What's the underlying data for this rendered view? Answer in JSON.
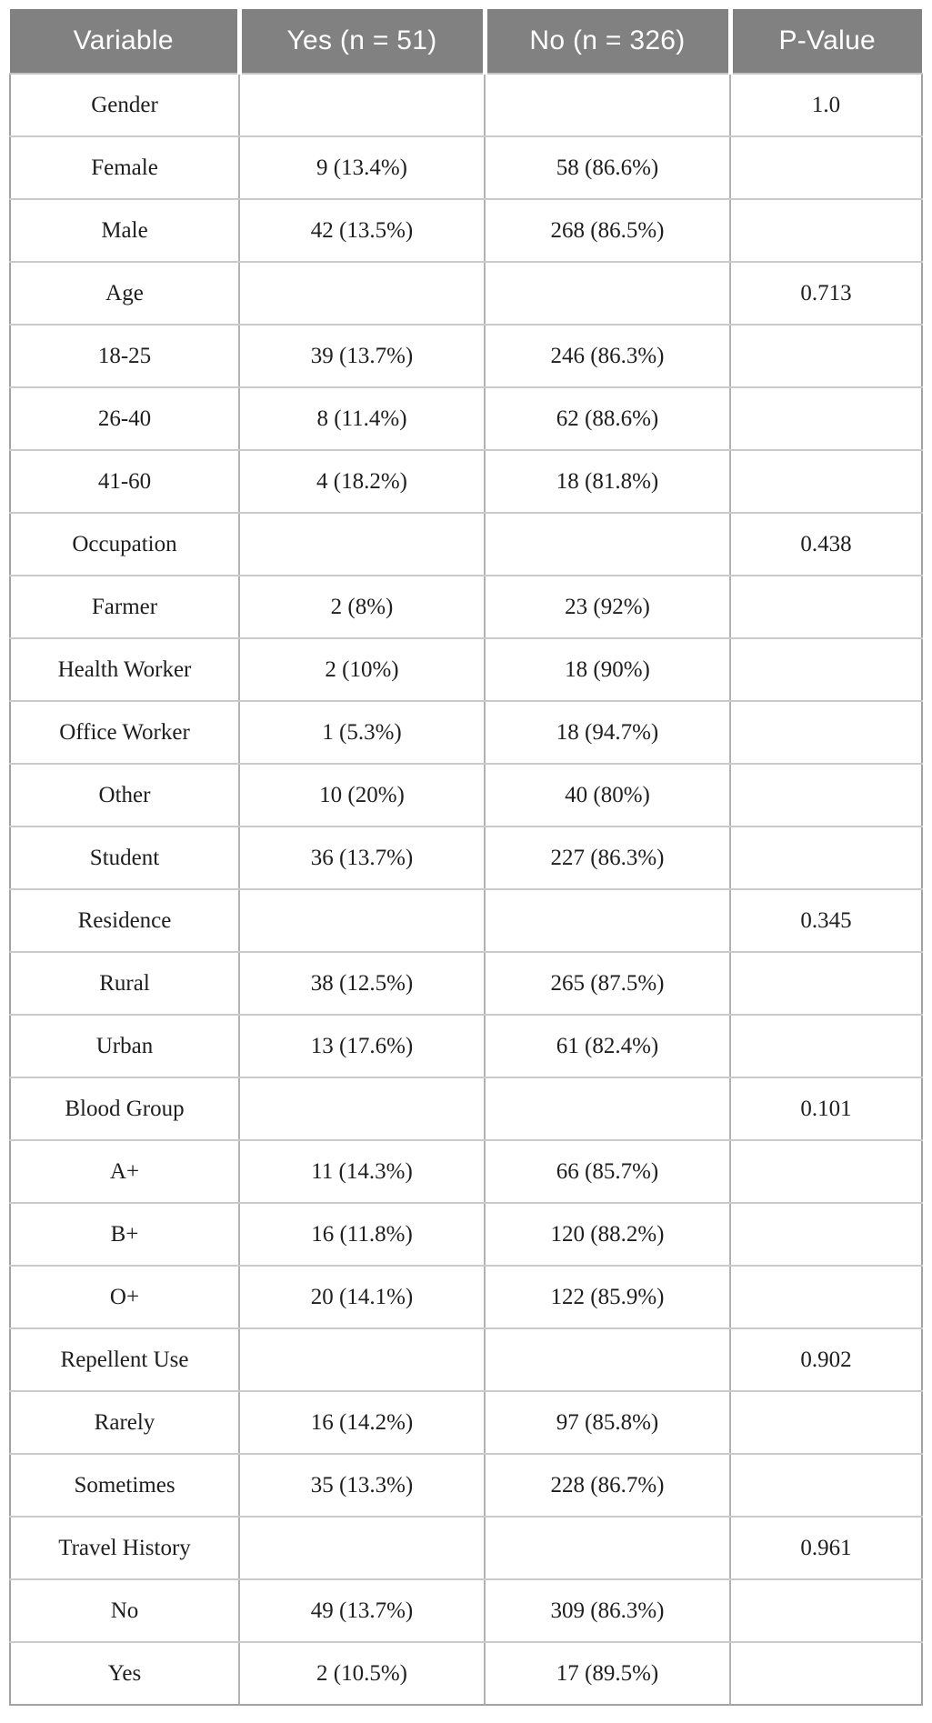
{
  "colors": {
    "header_bg": "#818181",
    "header_text": "#ffffff",
    "body_text": "#1e1e1e",
    "grid_line": "#c4c4c4",
    "outer_border": "#a2a2a2"
  },
  "chart_data": {
    "type": "table",
    "columns": [
      "Variable",
      "Yes (n = 51)",
      "No (n = 326)",
      "P-Value"
    ],
    "rows": [
      [
        "Gender",
        "",
        "",
        "1.0"
      ],
      [
        "Female",
        "9 (13.4%)",
        "58 (86.6%)",
        ""
      ],
      [
        "Male",
        "42 (13.5%)",
        "268 (86.5%)",
        ""
      ],
      [
        "Age",
        "",
        "",
        "0.713"
      ],
      [
        "18-25",
        "39 (13.7%)",
        "246 (86.3%)",
        ""
      ],
      [
        "26-40",
        "8 (11.4%)",
        "62 (88.6%)",
        ""
      ],
      [
        "41-60",
        "4 (18.2%)",
        "18 (81.8%)",
        ""
      ],
      [
        "Occupation",
        "",
        "",
        "0.438"
      ],
      [
        "Farmer",
        "2 (8%)",
        "23 (92%)",
        ""
      ],
      [
        "Health Worker",
        "2 (10%)",
        "18 (90%)",
        ""
      ],
      [
        "Office Worker",
        "1 (5.3%)",
        "18 (94.7%)",
        ""
      ],
      [
        "Other",
        "10 (20%)",
        "40 (80%)",
        ""
      ],
      [
        "Student",
        "36 (13.7%)",
        "227 (86.3%)",
        ""
      ],
      [
        "Residence",
        "",
        "",
        "0.345"
      ],
      [
        "Rural",
        "38 (12.5%)",
        "265 (87.5%)",
        ""
      ],
      [
        "Urban",
        "13 (17.6%)",
        "61 (82.4%)",
        ""
      ],
      [
        "Blood Group",
        "",
        "",
        "0.101"
      ],
      [
        "A+",
        "11 (14.3%)",
        "66 (85.7%)",
        ""
      ],
      [
        "B+",
        "16 (11.8%)",
        "120 (88.2%)",
        ""
      ],
      [
        "O+",
        "20 (14.1%)",
        "122 (85.9%)",
        ""
      ],
      [
        "Repellent Use",
        "",
        "",
        "0.902"
      ],
      [
        "Rarely",
        "16 (14.2%)",
        "97 (85.8%)",
        ""
      ],
      [
        "Sometimes",
        "35 (13.3%)",
        "228 (86.7%)",
        ""
      ],
      [
        "Travel History",
        "",
        "",
        "0.961"
      ],
      [
        "No",
        "49 (13.7%)",
        "309 (86.3%)",
        ""
      ],
      [
        "Yes",
        "2 (10.5%)",
        "17 (89.5%)",
        ""
      ]
    ]
  }
}
